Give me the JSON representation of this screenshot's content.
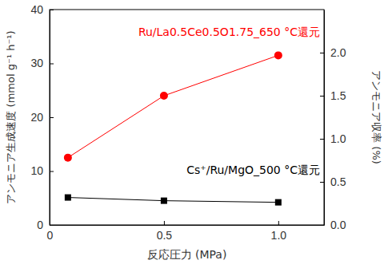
{
  "chart_data": {
    "type": "line",
    "x_label": "反応圧力 (MPa)",
    "y_label": "アンモニア生成速度 (mmol g⁻¹ h⁻¹)",
    "y2_label": "アンモニア収率 (%)",
    "x": [
      0.08,
      0.5,
      1.0
    ],
    "xlim": [
      0,
      1.2
    ],
    "xticks": [
      0,
      0.5,
      {
        "value": 1,
        "label": "1.0"
      }
    ],
    "ylim": [
      0,
      40
    ],
    "yticks": [
      0,
      10,
      20,
      30,
      40
    ],
    "y2lim": [
      0,
      2.5
    ],
    "y2ticks": [
      {
        "value": 0,
        "label": "0.0"
      },
      0.5,
      {
        "value": 1,
        "label": "1.0"
      },
      1.5,
      {
        "value": 2,
        "label": "2.0"
      }
    ],
    "grid": false,
    "series": [
      {
        "name": "Ru/La0.5Ce0.5O1.75_650 °C還元",
        "color": "#ff0000",
        "marker": "circle",
        "values": [
          12.5,
          24,
          31.5
        ]
      },
      {
        "name": "Cs⁺/Ru/MgO_500 °C還元",
        "color": "#000000",
        "marker": "square",
        "values": [
          5.1,
          4.5,
          4.2
        ]
      }
    ]
  }
}
